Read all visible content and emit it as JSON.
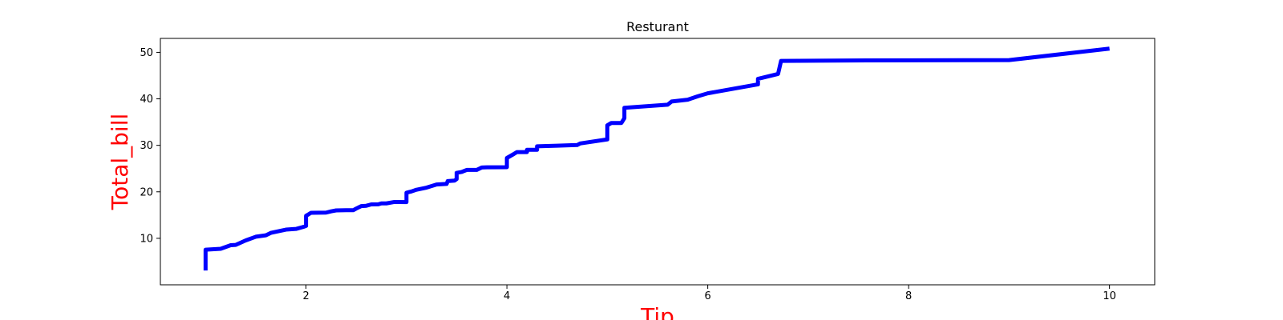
{
  "chart_data": {
    "type": "line",
    "title": "Resturant",
    "xlabel": "Tip",
    "ylabel": "Total_bill",
    "xlim": [
      0.55,
      10.45
    ],
    "ylim": [
      0.0,
      53.0
    ],
    "xticks": [
      2,
      4,
      6,
      8,
      10
    ],
    "yticks": [
      10,
      20,
      30,
      40,
      50
    ],
    "grid": false,
    "label_color": "#ff0000",
    "series": [
      {
        "color": "#0000ff",
        "x": [
          1.0,
          1.0,
          1.0,
          1.15,
          1.25,
          1.3,
          1.4,
          1.5,
          1.6,
          1.65,
          1.8,
          1.9,
          1.97,
          2.0,
          2.0,
          2.05,
          2.2,
          2.25,
          2.3,
          2.4,
          2.47,
          2.5,
          2.55,
          2.6,
          2.65,
          2.72,
          2.75,
          2.8,
          2.88,
          2.9,
          3.0,
          3.0,
          3.05,
          3.1,
          3.2,
          3.3,
          3.4,
          3.41,
          3.48,
          3.5,
          3.5,
          3.55,
          3.6,
          3.7,
          3.75,
          3.8,
          4.0,
          4.0,
          4.07,
          4.1,
          4.2,
          4.2,
          4.3,
          4.3,
          4.5,
          4.7,
          4.73,
          5.0,
          5.0,
          5.04,
          5.14,
          5.17,
          5.17,
          5.6,
          5.64,
          5.8,
          5.9,
          6.0,
          6.5,
          6.5,
          6.7,
          6.73,
          6.73,
          7.58,
          9.0,
          10.0
        ],
        "y": [
          3.07,
          6.8,
          7.56,
          7.74,
          8.52,
          8.58,
          9.55,
          10.34,
          10.65,
          11.17,
          11.87,
          12.02,
          12.43,
          12.66,
          14.83,
          15.48,
          15.53,
          15.8,
          16.0,
          16.04,
          16.04,
          16.4,
          16.93,
          17.0,
          17.29,
          17.31,
          17.51,
          17.51,
          17.82,
          17.81,
          17.78,
          19.81,
          20.08,
          20.45,
          20.9,
          21.58,
          21.7,
          22.3,
          22.42,
          22.76,
          24.08,
          24.27,
          24.71,
          24.71,
          25.24,
          25.28,
          25.29,
          27.28,
          28.15,
          28.55,
          28.55,
          29.03,
          29.03,
          29.8,
          29.93,
          30.06,
          30.4,
          31.27,
          34.3,
          34.81,
          34.81,
          35.83,
          38.07,
          38.73,
          39.42,
          39.81,
          40.55,
          41.19,
          43.11,
          44.3,
          45.35,
          48.17,
          48.17,
          48.27,
          48.33,
          50.81
        ]
      }
    ]
  }
}
